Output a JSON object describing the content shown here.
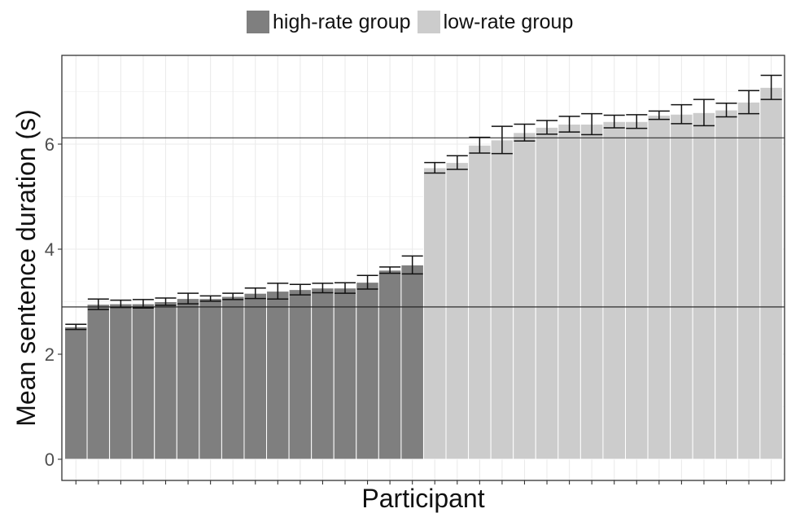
{
  "chart_data": {
    "type": "bar",
    "xlabel": "Participant",
    "ylabel": "Mean sentence duration (s)",
    "ylim": [
      0,
      7.75
    ],
    "yticks": [
      0,
      2,
      4,
      6
    ],
    "grid": true,
    "legend_position": "top",
    "reference_lines": [
      2.9,
      6.12
    ],
    "series": [
      {
        "name": "high-rate group",
        "color": "#7f7f7f",
        "values": [
          2.52,
          2.95,
          2.96,
          2.96,
          3.0,
          3.06,
          3.06,
          3.1,
          3.16,
          3.2,
          3.23,
          3.26,
          3.26,
          3.37,
          3.6,
          3.7
        ],
        "errors": [
          0.05,
          0.1,
          0.07,
          0.08,
          0.07,
          0.1,
          0.05,
          0.06,
          0.1,
          0.15,
          0.1,
          0.09,
          0.1,
          0.13,
          0.06,
          0.17
        ]
      },
      {
        "name": "low-rate group",
        "color": "#cccccc",
        "values": [
          5.55,
          5.65,
          5.98,
          6.08,
          6.22,
          6.32,
          6.38,
          6.38,
          6.43,
          6.43,
          6.55,
          6.57,
          6.6,
          6.65,
          6.8,
          7.08
        ],
        "errors": [
          0.1,
          0.13,
          0.15,
          0.26,
          0.16,
          0.13,
          0.15,
          0.2,
          0.12,
          0.13,
          0.08,
          0.18,
          0.25,
          0.13,
          0.22,
          0.23
        ]
      }
    ]
  }
}
